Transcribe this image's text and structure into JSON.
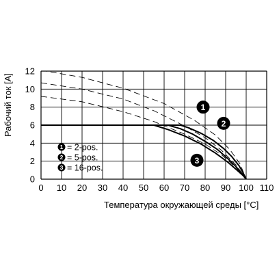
{
  "chart_data": {
    "type": "line",
    "xlabel": "Температура окружающей среды [°C]",
    "ylabel": "Рабочий ток [A]",
    "xlim": [
      0,
      110
    ],
    "ylim": [
      0,
      12
    ],
    "x_ticks": [
      "0",
      "10",
      "20",
      "30",
      "40",
      "50",
      "60",
      "70",
      "80",
      "90",
      "100",
      "110"
    ],
    "y_ticks": [
      "0",
      "2",
      "4",
      "6",
      "8",
      "10",
      "12"
    ],
    "grid": true,
    "series": [
      {
        "name": "1",
        "style": "solid",
        "points": [
          [
            0,
            6
          ],
          [
            68,
            6
          ],
          [
            72,
            5.7
          ],
          [
            78,
            5.1
          ],
          [
            84,
            4.3
          ],
          [
            89,
            3.4
          ],
          [
            93,
            2.5
          ],
          [
            96.5,
            1.5
          ],
          [
            98.5,
            0.7
          ],
          [
            100,
            0
          ]
        ]
      },
      {
        "name": "2",
        "style": "solid",
        "points": [
          [
            0,
            6
          ],
          [
            62,
            6
          ],
          [
            68,
            5.6
          ],
          [
            74,
            5.0
          ],
          [
            80,
            4.2
          ],
          [
            86,
            3.3
          ],
          [
            91,
            2.3
          ],
          [
            95,
            1.4
          ],
          [
            98,
            0.6
          ],
          [
            100,
            0
          ]
        ]
      },
      {
        "name": "3",
        "style": "solid",
        "points": [
          [
            0,
            6
          ],
          [
            55,
            6
          ],
          [
            62,
            5.5
          ],
          [
            70,
            4.8
          ],
          [
            78,
            3.9
          ],
          [
            85,
            2.9
          ],
          [
            91,
            1.9
          ],
          [
            95.5,
            1.0
          ],
          [
            98.5,
            0.4
          ],
          [
            100,
            0
          ]
        ]
      },
      {
        "name": "1-dashed",
        "style": "dashed",
        "points": [
          [
            0,
            12.1
          ],
          [
            20,
            11.3
          ],
          [
            40,
            10.1
          ],
          [
            60,
            8.4
          ],
          [
            75,
            6.5
          ],
          [
            85,
            4.9
          ],
          [
            92,
            3.3
          ],
          [
            97,
            1.7
          ],
          [
            100,
            0
          ]
        ]
      },
      {
        "name": "2-dashed",
        "style": "dashed",
        "points": [
          [
            0,
            10.7
          ],
          [
            20,
            10.0
          ],
          [
            40,
            8.9
          ],
          [
            55,
            7.6
          ],
          [
            70,
            5.9
          ],
          [
            80,
            4.6
          ],
          [
            88,
            3.2
          ],
          [
            95,
            1.6
          ],
          [
            100,
            0
          ]
        ]
      },
      {
        "name": "3-dashed",
        "style": "dashed",
        "points": [
          [
            0,
            9.2
          ],
          [
            20,
            8.6
          ],
          [
            40,
            7.5
          ],
          [
            55,
            6.4
          ],
          [
            70,
            5.0
          ],
          [
            80,
            3.9
          ],
          [
            88,
            2.7
          ],
          [
            95,
            1.3
          ],
          [
            100,
            0
          ]
        ]
      }
    ],
    "markers": [
      {
        "label": "1",
        "x": 79,
        "y": 8.0
      },
      {
        "label": "2",
        "x": 89,
        "y": 6.2
      },
      {
        "label": "3",
        "x": 76,
        "y": 2.1
      }
    ],
    "legend": [
      {
        "marker": "1",
        "text": "= 2-pos."
      },
      {
        "marker": "2",
        "text": "= 5-pos."
      },
      {
        "marker": "3",
        "text": "= 16-pos."
      }
    ],
    "colors": {
      "line": "#000000",
      "grid": "#000000",
      "marker_fill": "#000000",
      "marker_text": "#ffffff"
    }
  }
}
